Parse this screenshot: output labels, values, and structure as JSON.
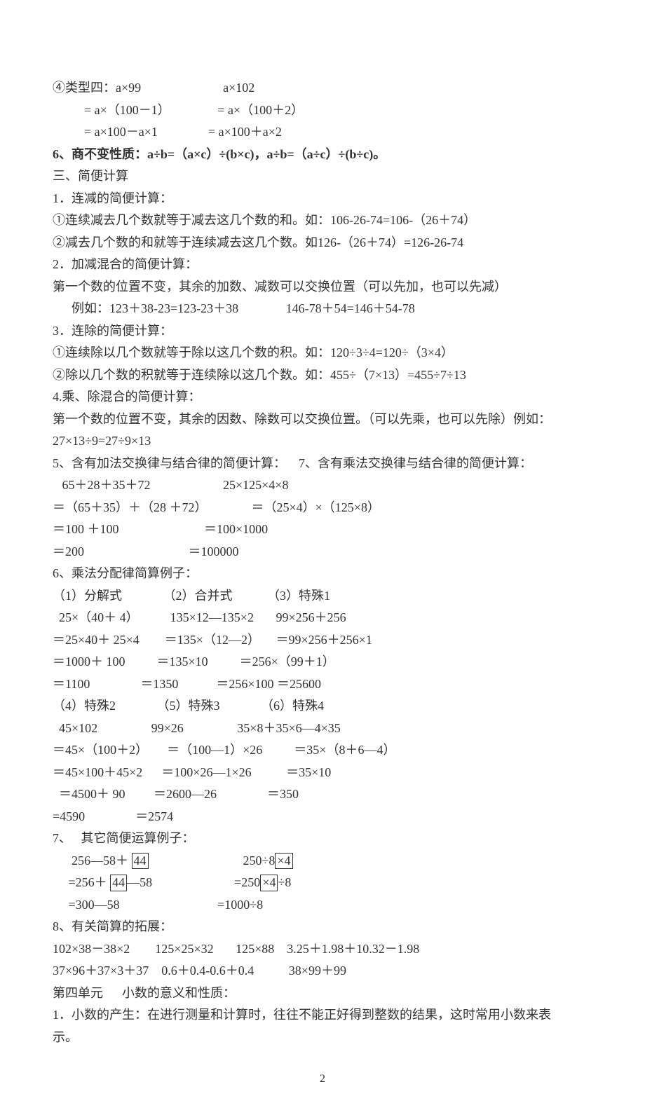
{
  "lines": [
    {
      "t": "④类型四：a×99                          a×102",
      "cls": ""
    },
    {
      "t": "          = a×（100－1）               = a×（100＋2）",
      "cls": ""
    },
    {
      "t": "          = a×100－a×1                = a×100＋a×2",
      "cls": ""
    },
    {
      "t": "6、商不变性质：a÷b=（a×c）÷(b×c)，a÷b=（a÷c）÷(b÷c)。",
      "cls": "bold"
    },
    {
      "t": "三、简便计算",
      "cls": ""
    },
    {
      "t": "1．连减的简便计算：",
      "cls": ""
    },
    {
      "t": "①连续减去几个数就等于减去这几个数的和。如：106-26-74=106-（26＋74）",
      "cls": ""
    },
    {
      "t": "②减去几个数的和就等于连续减去这几个数。如126-（26＋74）=126-26-74",
      "cls": ""
    },
    {
      "t": "2．加减混合的简便计算：",
      "cls": ""
    },
    {
      "t": "第一个数的位置不变，其余的加数、减数可以交换位置（可以先加，也可以先减）",
      "cls": ""
    },
    {
      "t": "      例如：123＋38-23=123-23＋38               146-78＋54=146＋54-78",
      "cls": ""
    },
    {
      "t": "3．连除的简便计算：",
      "cls": ""
    },
    {
      "t": "①连续除以几个数就等于除以这几个数的积。如：120÷3÷4=120÷（3×4）",
      "cls": ""
    },
    {
      "t": "②除以几个数的积就等于连续除以这几个数。如：455÷（7×13）=455÷7÷13",
      "cls": ""
    },
    {
      "t": "4.乘、除混合的简便计算：",
      "cls": ""
    },
    {
      "t": "第一个数的位置不变，其余的因数、除数可以交换位置。（可以先乘，也可以先除）例如：",
      "cls": ""
    },
    {
      "t": "27×13÷9=27÷9×13",
      "cls": ""
    },
    {
      "t": "5、含有加法交换律与结合律的简便计算：    7、含有乘法交换律与结合律的简便计算：",
      "cls": ""
    },
    {
      "t": "   65＋28＋35＋72                       25×125×4×8",
      "cls": ""
    },
    {
      "t": "＝（65＋35）＋（28 ＋72）              ＝（25×4）×（125×8）",
      "cls": ""
    },
    {
      "t": "＝100 ＋100                           ＝100×1000",
      "cls": ""
    },
    {
      "t": "＝200                                 ＝100000",
      "cls": ""
    },
    {
      "t": "6、乘法分配律简算例子：",
      "cls": ""
    },
    {
      "t": "（1）分解式             （2）合并式           （3）特殊1",
      "cls": ""
    },
    {
      "t": "  25×（40＋ 4）          135×12—135×2       99×256＋256",
      "cls": ""
    },
    {
      "t": "＝25×40＋ 25×4        ＝135×（12—2）     ＝99×256＋256×1",
      "cls": ""
    },
    {
      "t": "＝1000＋ 100          ＝135×10          ＝256×（99＋1）",
      "cls": ""
    },
    {
      "t": "＝1100                ＝1350            ＝256×100 ＝25600",
      "cls": ""
    },
    {
      "t": "（4）特殊2             （5）特殊3             （6）特殊4",
      "cls": ""
    },
    {
      "t": "  45×102                 99×26                 35×8＋35×6—4×35",
      "cls": ""
    },
    {
      "t": "＝45×（100＋2）      ＝（100—1）×26          ＝35×（8＋6—4）",
      "cls": ""
    },
    {
      "t": "＝45×100＋45×2      ＝100×26—1×26           ＝35×10",
      "cls": ""
    },
    {
      "t": "  ＝4500＋ 90         ＝2600—26                ＝350",
      "cls": ""
    },
    {
      "t": "=4590                ＝2574",
      "cls": ""
    },
    {
      "t": "7、   其它简便运算例子：",
      "cls": ""
    }
  ],
  "boxed_lines": {
    "l1_pre": "      256—58＋ ",
    "l1_box": "44",
    "l1_mid": "                              250÷8",
    "l1_box2": "×4",
    "l2_pre": "     =256＋ ",
    "l2_box": "44",
    "l2_mid": "—58                          =250",
    "l2_box2": "×4",
    "l2_suf": "÷8",
    "l3": "     =300—58                               =1000÷8"
  },
  "tail": [
    {
      "t": "8、有关简算的拓展：",
      "cls": ""
    },
    {
      "t": "102×38－38×2        125×25×32       125×88    3.25＋1.98＋10.32－1.98",
      "cls": ""
    },
    {
      "t": "37×96＋37×3＋37    0.6＋0.4-0.6＋0.4           38×99＋99",
      "cls": ""
    },
    {
      "t": "第四单元      小数的意义和性质：",
      "cls": ""
    },
    {
      "t": "1．小数的产生：在进行测量和计算时，往往不能正好得到整数的结果，这时常用小数来表",
      "cls": ""
    },
    {
      "t": "示。",
      "cls": ""
    }
  ],
  "page_number": "2"
}
